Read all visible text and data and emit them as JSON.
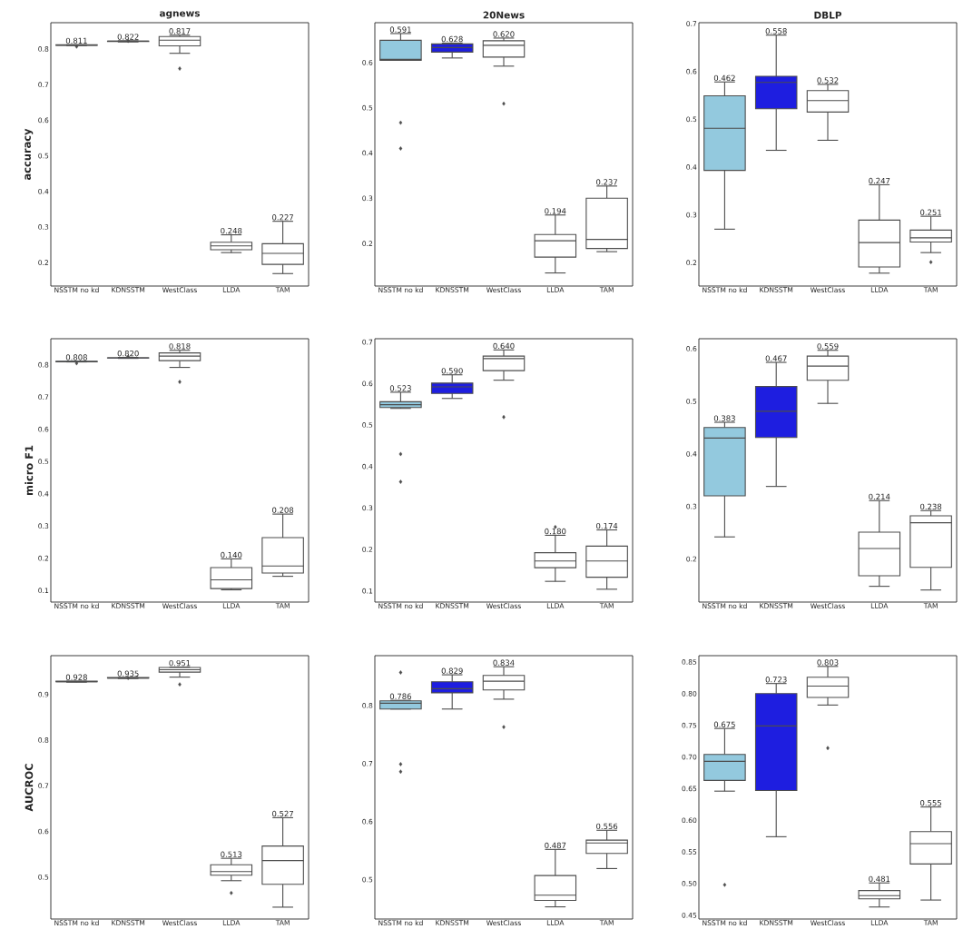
{
  "chart_data": [
    {
      "type": "box",
      "title": "agnews",
      "ylabel": "accuracy",
      "categories": [
        "NSSTM no kd",
        "KDNSSTM",
        "WestClass",
        "LLDA",
        "TAM"
      ],
      "colors": [
        "#93c9de",
        "#1e1ee0",
        "#ffffff",
        "#ffffff",
        "#ffffff"
      ],
      "boxes": [
        {
          "low": 0.81,
          "q1": 0.81,
          "median": 0.811,
          "q3": 0.812,
          "high": 0.812,
          "outliers": [
            0.807
          ]
        },
        {
          "low": 0.82,
          "q1": 0.821,
          "median": 0.822,
          "q3": 0.822,
          "high": 0.823,
          "outliers": [
            0.823
          ]
        },
        {
          "low": 0.788,
          "q1": 0.809,
          "median": 0.825,
          "q3": 0.835,
          "high": 0.839,
          "outliers": [
            0.745
          ]
        },
        {
          "low": 0.228,
          "q1": 0.236,
          "median": 0.247,
          "q3": 0.257,
          "high": 0.278
        },
        {
          "low": 0.169,
          "q1": 0.195,
          "median": 0.226,
          "q3": 0.253,
          "high": 0.316
        }
      ],
      "ylim": [
        0.134,
        0.874
      ],
      "yticks": [
        0.2,
        0.3,
        0.4,
        0.5,
        0.6,
        0.7,
        0.8
      ],
      "annotations": [
        "0.811",
        "0.822",
        "0.817",
        "0.248",
        "0.227"
      ]
    },
    {
      "type": "box",
      "title": "20News",
      "categories": [
        "NSSTM no kd",
        "KDNSSTM",
        "WestClass",
        "LLDA",
        "TAM"
      ],
      "colors": [
        "#93c9de",
        "#1e1ee0",
        "#ffffff",
        "#ffffff",
        "#ffffff"
      ],
      "boxes": [
        {
          "low": 0.605,
          "q1": 0.605,
          "median": 0.607,
          "q3": 0.649,
          "high": 0.664,
          "outliers": [
            0.467,
            0.41
          ]
        },
        {
          "low": 0.61,
          "q1": 0.623,
          "median": 0.633,
          "q3": 0.641,
          "high": 0.643
        },
        {
          "low": 0.592,
          "q1": 0.612,
          "median": 0.638,
          "q3": 0.648,
          "high": 0.654,
          "outliers": [
            0.509
          ]
        },
        {
          "low": 0.135,
          "q1": 0.17,
          "median": 0.206,
          "q3": 0.22,
          "high": 0.263
        },
        {
          "low": 0.182,
          "q1": 0.189,
          "median": 0.209,
          "q3": 0.3,
          "high": 0.327
        }
      ],
      "ylim": [
        0.106,
        0.688
      ],
      "yticks": [
        0.2,
        0.3,
        0.4,
        0.5,
        0.6
      ],
      "annotations": [
        "0.591",
        "0.628",
        "0.620",
        "0.194",
        "0.237"
      ]
    },
    {
      "type": "box",
      "title": "DBLP",
      "categories": [
        "NSSTM no kd",
        "KDNSSTM",
        "WestClass",
        "LLDA",
        "TAM"
      ],
      "colors": [
        "#93c9de",
        "#1e1ee0",
        "#ffffff",
        "#ffffff",
        "#ffffff"
      ],
      "boxes": [
        {
          "low": 0.27,
          "q1": 0.393,
          "median": 0.481,
          "q3": 0.549,
          "high": 0.578
        },
        {
          "low": 0.435,
          "q1": 0.522,
          "median": 0.577,
          "q3": 0.59,
          "high": 0.676
        },
        {
          "low": 0.456,
          "q1": 0.515,
          "median": 0.539,
          "q3": 0.56,
          "high": 0.573
        },
        {
          "low": 0.178,
          "q1": 0.191,
          "median": 0.242,
          "q3": 0.289,
          "high": 0.363
        },
        {
          "low": 0.221,
          "q1": 0.243,
          "median": 0.252,
          "q3": 0.268,
          "high": 0.297,
          "outliers": [
            0.201
          ]
        }
      ],
      "ylim": [
        0.151,
        0.702
      ],
      "yticks": [
        0.2,
        0.3,
        0.4,
        0.5,
        0.6,
        0.7
      ],
      "annotations": [
        "0.462",
        "0.558",
        "0.532",
        "0.247",
        "0.251"
      ]
    },
    {
      "type": "box",
      "ylabel": "micro F1",
      "categories": [
        "NSSTM no kd",
        "KDNSSTM",
        "WestClass",
        "LLDA",
        "TAM"
      ],
      "colors": [
        "#93c9de",
        "#1e1ee0",
        "#ffffff",
        "#ffffff",
        "#ffffff"
      ],
      "boxes": [
        {
          "low": 0.809,
          "q1": 0.809,
          "median": 0.81,
          "q3": 0.811,
          "high": 0.811,
          "outliers": [
            0.805
          ]
        },
        {
          "low": 0.82,
          "q1": 0.821,
          "median": 0.822,
          "q3": 0.822,
          "high": 0.823,
          "outliers": [
            0.825
          ]
        },
        {
          "low": 0.792,
          "q1": 0.813,
          "median": 0.827,
          "q3": 0.837,
          "high": 0.845,
          "outliers": [
            0.747
          ]
        },
        {
          "low": 0.102,
          "q1": 0.106,
          "median": 0.133,
          "q3": 0.171,
          "high": 0.198
        },
        {
          "low": 0.144,
          "q1": 0.154,
          "median": 0.176,
          "q3": 0.264,
          "high": 0.337
        }
      ],
      "ylim": [
        0.064,
        0.881
      ],
      "yticks": [
        0.1,
        0.2,
        0.3,
        0.4,
        0.5,
        0.6,
        0.7,
        0.8
      ],
      "annotations": [
        "0.808",
        "0.820",
        "0.818",
        "0.140",
        "0.208"
      ]
    },
    {
      "type": "box",
      "categories": [
        "NSSTM no kd",
        "KDNSSTM",
        "WestClass",
        "LLDA",
        "TAM"
      ],
      "colors": [
        "#93c9de",
        "#1e1ee0",
        "#ffffff",
        "#ffffff",
        "#ffffff"
      ],
      "boxes": [
        {
          "low": 0.54,
          "q1": 0.542,
          "median": 0.549,
          "q3": 0.556,
          "high": 0.579,
          "outliers": [
            0.43,
            0.363
          ]
        },
        {
          "low": 0.564,
          "q1": 0.576,
          "median": 0.592,
          "q3": 0.601,
          "high": 0.621
        },
        {
          "low": 0.608,
          "q1": 0.631,
          "median": 0.66,
          "q3": 0.666,
          "high": 0.681,
          "outliers": [
            0.519
          ]
        },
        {
          "low": 0.123,
          "q1": 0.156,
          "median": 0.172,
          "q3": 0.192,
          "high": 0.234,
          "outliers": [
            0.254
          ]
        },
        {
          "low": 0.104,
          "q1": 0.133,
          "median": 0.172,
          "q3": 0.208,
          "high": 0.247
        }
      ],
      "ylim": [
        0.073,
        0.708
      ],
      "yticks": [
        0.1,
        0.2,
        0.3,
        0.4,
        0.5,
        0.6,
        0.7
      ],
      "annotations": [
        "0.523",
        "0.590",
        "0.640",
        "0.180",
        "0.174"
      ]
    },
    {
      "type": "box",
      "categories": [
        "NSSTM no kd",
        "KDNSSTM",
        "WestClass",
        "LLDA",
        "TAM"
      ],
      "colors": [
        "#93c9de",
        "#1e1ee0",
        "#ffffff",
        "#ffffff",
        "#ffffff"
      ],
      "boxes": [
        {
          "low": 0.242,
          "q1": 0.32,
          "median": 0.43,
          "q3": 0.45,
          "high": 0.46
        },
        {
          "low": 0.338,
          "q1": 0.431,
          "median": 0.481,
          "q3": 0.528,
          "high": 0.574
        },
        {
          "low": 0.496,
          "q1": 0.54,
          "median": 0.567,
          "q3": 0.586,
          "high": 0.597
        },
        {
          "low": 0.148,
          "q1": 0.168,
          "median": 0.22,
          "q3": 0.251,
          "high": 0.311
        },
        {
          "low": 0.141,
          "q1": 0.184,
          "median": 0.269,
          "q3": 0.282,
          "high": 0.292
        }
      ],
      "ylim": [
        0.118,
        0.619
      ],
      "yticks": [
        0.2,
        0.3,
        0.4,
        0.5,
        0.6
      ],
      "annotations": [
        "0.383",
        "0.467",
        "0.559",
        "0.214",
        "0.238"
      ]
    },
    {
      "type": "box",
      "ylabel": "AUCROC",
      "categories": [
        "NSSTM no kd",
        "KDNSSTM",
        "WestClass",
        "LLDA",
        "TAM"
      ],
      "colors": [
        "#93c9de",
        "#1e1ee0",
        "#ffffff",
        "#ffffff",
        "#ffffff"
      ],
      "boxes": [
        {
          "low": 0.927,
          "q1": 0.928,
          "median": 0.928,
          "q3": 0.929,
          "high": 0.929
        },
        {
          "low": 0.935,
          "q1": 0.936,
          "median": 0.936,
          "q3": 0.937,
          "high": 0.937,
          "outliers": [
            0.936
          ]
        },
        {
          "low": 0.938,
          "q1": 0.949,
          "median": 0.954,
          "q3": 0.959,
          "high": 0.96,
          "outliers": [
            0.922
          ]
        },
        {
          "low": 0.492,
          "q1": 0.504,
          "median": 0.512,
          "q3": 0.527,
          "high": 0.541,
          "outliers": [
            0.465
          ]
        },
        {
          "low": 0.434,
          "q1": 0.484,
          "median": 0.536,
          "q3": 0.568,
          "high": 0.63
        }
      ],
      "ylim": [
        0.408,
        0.985
      ],
      "yticks": [
        0.5,
        0.6,
        0.7,
        0.8,
        0.9
      ],
      "annotations": [
        "0.928",
        "0.935",
        "0.951",
        "0.513",
        "0.527"
      ]
    },
    {
      "type": "box",
      "categories": [
        "NSSTM no kd",
        "KDNSSTM",
        "WestClass",
        "LLDA",
        "TAM"
      ],
      "colors": [
        "#93c9de",
        "#1e1ee0",
        "#ffffff",
        "#ffffff",
        "#ffffff"
      ],
      "boxes": [
        {
          "low": 0.794,
          "q1": 0.794,
          "median": 0.804,
          "q3": 0.808,
          "high": 0.809,
          "outliers": [
            0.857,
            0.699,
            0.686
          ]
        },
        {
          "low": 0.794,
          "q1": 0.822,
          "median": 0.829,
          "q3": 0.841,
          "high": 0.853
        },
        {
          "low": 0.811,
          "q1": 0.827,
          "median": 0.842,
          "q3": 0.852,
          "high": 0.867,
          "outliers": [
            0.763
          ]
        },
        {
          "low": 0.453,
          "q1": 0.464,
          "median": 0.473,
          "q3": 0.507,
          "high": 0.552
        },
        {
          "low": 0.519,
          "q1": 0.545,
          "median": 0.563,
          "q3": 0.568,
          "high": 0.585
        }
      ],
      "ylim": [
        0.432,
        0.886
      ],
      "yticks": [
        0.5,
        0.6,
        0.7,
        0.8
      ],
      "annotations": [
        "0.786",
        "0.829",
        "0.834",
        "0.487",
        "0.556"
      ]
    },
    {
      "type": "box",
      "categories": [
        "NSSTM no kd",
        "KDNSSTM",
        "WestClass",
        "LLDA",
        "TAM"
      ],
      "colors": [
        "#93c9de",
        "#1e1ee0",
        "#ffffff",
        "#ffffff",
        "#ffffff"
      ],
      "boxes": [
        {
          "low": 0.646,
          "q1": 0.663,
          "median": 0.693,
          "q3": 0.704,
          "high": 0.745,
          "outliers": [
            0.498
          ]
        },
        {
          "low": 0.574,
          "q1": 0.647,
          "median": 0.749,
          "q3": 0.8,
          "high": 0.816
        },
        {
          "low": 0.782,
          "q1": 0.794,
          "median": 0.812,
          "q3": 0.826,
          "high": 0.843,
          "outliers": [
            0.714
          ]
        },
        {
          "low": 0.463,
          "q1": 0.476,
          "median": 0.481,
          "q3": 0.489,
          "high": 0.501
        },
        {
          "low": 0.474,
          "q1": 0.531,
          "median": 0.563,
          "q3": 0.582,
          "high": 0.621
        }
      ],
      "ylim": [
        0.444,
        0.86
      ],
      "yticks": [
        0.45,
        {
          "value": 0.5,
          "label": "0.50"
        },
        0.55,
        {
          "value": 0.6,
          "label": "0.60"
        },
        0.65,
        {
          "value": 0.7,
          "label": "0.70"
        },
        0.75,
        {
          "value": 0.8,
          "label": "0.80"
        },
        0.85
      ],
      "annotations": [
        "0.675",
        "0.723",
        "0.803",
        "0.481",
        "0.555"
      ]
    }
  ]
}
